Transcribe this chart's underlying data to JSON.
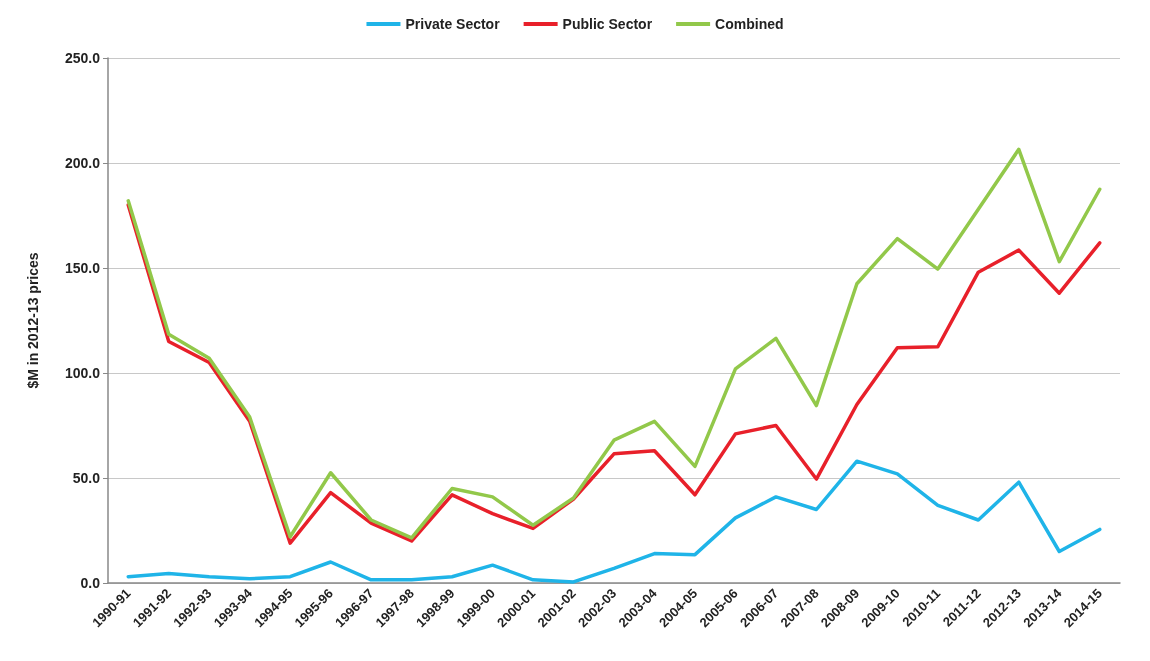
{
  "chart_data": {
    "type": "line",
    "ylabel": "$M in 2012-13 prices",
    "categories": [
      "1990-91",
      "1991-92",
      "1992-93",
      "1993-94",
      "1994-95",
      "1995-96",
      "1996-97",
      "1997-98",
      "1998-99",
      "1999-00",
      "2000-01",
      "2001-02",
      "2002-03",
      "2003-04",
      "2004-05",
      "2005-06",
      "2006-07",
      "2007-08",
      "2008-09",
      "2009-10",
      "2010-11",
      "2011-12",
      "2012-13",
      "2013-14",
      "2014-15"
    ],
    "series": [
      {
        "name": "Private Sector",
        "color": "#1fb4e8",
        "values": [
          3,
          4.5,
          3,
          2,
          3,
          10,
          1.5,
          1.5,
          3,
          8.5,
          1.5,
          0.5,
          7,
          14,
          13.5,
          31,
          41,
          35,
          58,
          52,
          37,
          30,
          48,
          15,
          25.5
        ]
      },
      {
        "name": "Public Sector",
        "color": "#e8202a",
        "values": [
          180,
          115,
          105,
          77,
          19,
          43,
          28.5,
          20,
          42,
          33,
          26,
          40,
          61.5,
          63,
          42,
          71,
          75,
          49.5,
          85,
          112,
          112.5,
          148,
          158.5,
          138,
          162
        ]
      },
      {
        "name": "Combined",
        "color": "#92c84a",
        "values": [
          182,
          118.5,
          107,
          79,
          22,
          52.5,
          30,
          21.5,
          45,
          41,
          27.5,
          40.5,
          68,
          77,
          55.5,
          102,
          116.5,
          84.5,
          142.5,
          164,
          149.5,
          178,
          206.5,
          153,
          187.5
        ]
      }
    ],
    "ylim": [
      0,
      250
    ],
    "yticks": [
      {
        "value": 0,
        "label": "0.0"
      },
      {
        "value": 50,
        "label": "50.0"
      },
      {
        "value": 100,
        "label": "100.0"
      },
      {
        "value": 150,
        "label": "150.0"
      },
      {
        "value": 200,
        "label": "200.0"
      },
      {
        "value": 250,
        "label": "250.0"
      }
    ],
    "grid": "y",
    "legend": "top",
    "marker": "none",
    "line_style": "solid"
  }
}
